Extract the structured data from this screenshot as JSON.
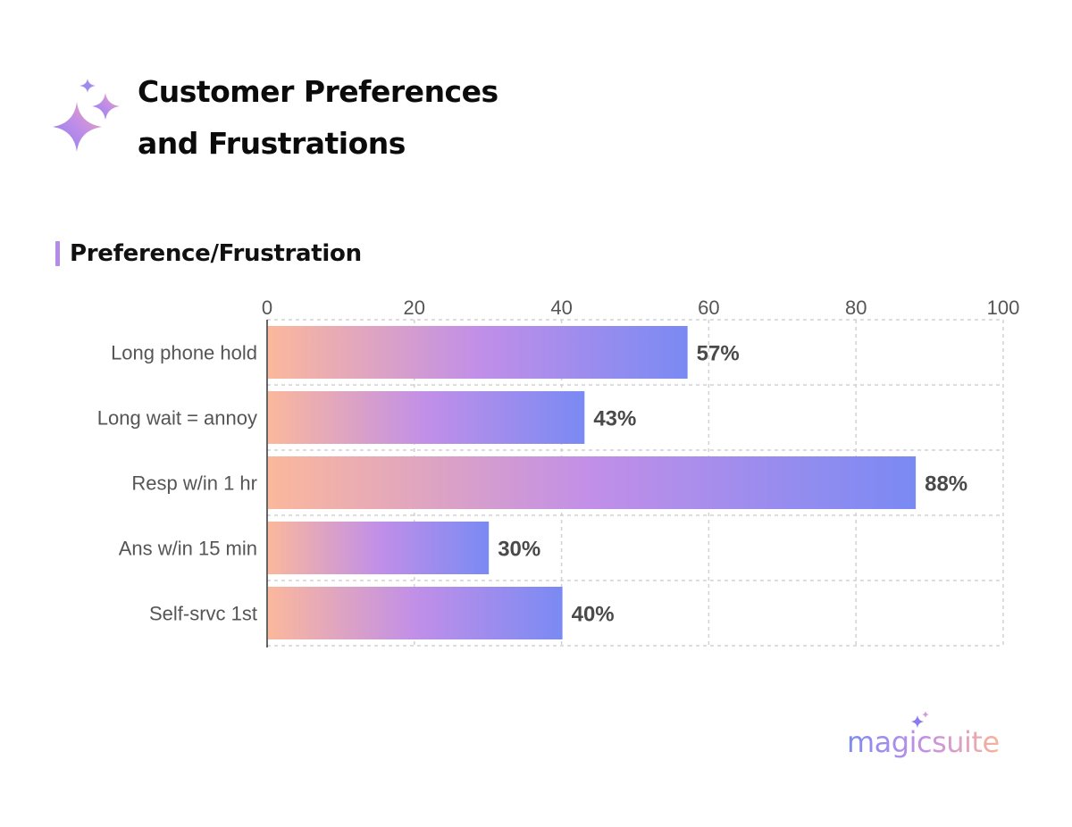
{
  "header": {
    "title_line1": "Customer Preferences",
    "title_line2": "and Frustrations"
  },
  "section": {
    "title": "Preference/Frustration"
  },
  "brand": {
    "name": "magicsuite"
  },
  "colors": {
    "bar_gradient": [
      "#fbb89c",
      "#c18fe8",
      "#7a8af3"
    ],
    "label_text": "#555555",
    "value_text": "#4a4a4a",
    "grid": "#d2d2d2",
    "section_accent": "#b58be8"
  },
  "chart_data": {
    "type": "bar",
    "orientation": "horizontal",
    "title": "Preference/Frustration",
    "categories": [
      "Long phone hold",
      "Long wait = annoy",
      "Resp w/in 1 hr",
      "Ans w/in 15 min",
      "Self-srvc 1st"
    ],
    "values": [
      57,
      43,
      88,
      30,
      40
    ],
    "value_labels": [
      "57%",
      "43%",
      "88%",
      "30%",
      "40%"
    ],
    "xlim": [
      0,
      100
    ],
    "xticks": [
      0,
      20,
      40,
      60,
      80,
      100
    ],
    "xaxis_position": "top",
    "grid": true,
    "xlabel": "",
    "ylabel": ""
  }
}
